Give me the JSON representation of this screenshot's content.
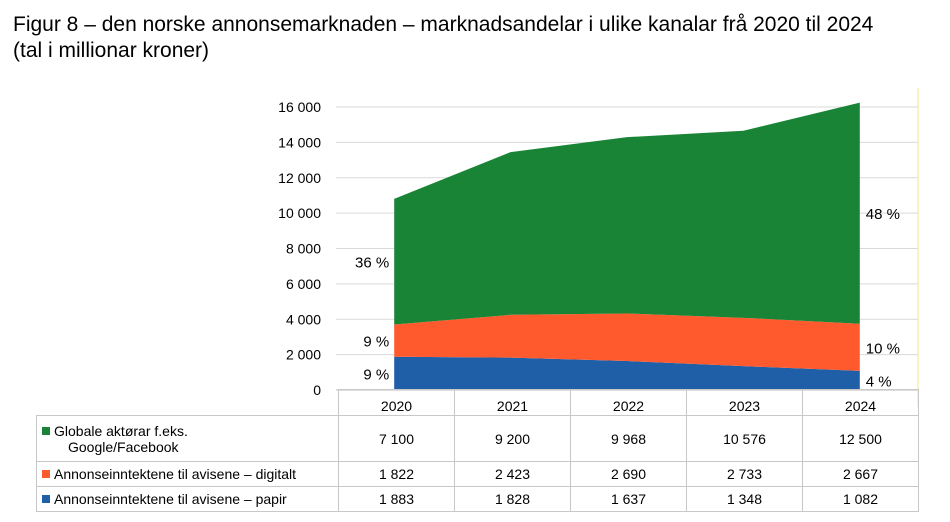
{
  "title_line1": "Figur 8 – den norske annonsemarknaden – marknadsandelar i ulike kanalar frå 2020 til 2024",
  "title_line2": "(tal i millionar kroner)",
  "chart_data": {
    "type": "area",
    "stacked": true,
    "categories": [
      "2020",
      "2021",
      "2022",
      "2023",
      "2024"
    ],
    "ylim": [
      0,
      16000
    ],
    "yticks": [
      "0",
      "2 000",
      "4 000",
      "6 000",
      "8 000",
      "10 000",
      "12 000",
      "14 000",
      "16 000"
    ],
    "series": [
      {
        "name": "Annonseinntektene til avisene – papir",
        "color": "#1f5fa8",
        "values": [
          1883,
          1828,
          1637,
          1348,
          1082
        ],
        "display": [
          "1 883",
          "1 828",
          "1 637",
          "1 348",
          "1 082"
        ]
      },
      {
        "name": "Annonseinntektene til avisene – digitalt",
        "color": "#ff5a2e",
        "values": [
          1822,
          2423,
          2690,
          2733,
          2667
        ],
        "display": [
          "1 822",
          "2 423",
          "2 690",
          "2 733",
          "2 667"
        ]
      },
      {
        "name": "Globale aktørar f.eks. Google/Facebook",
        "color": "#1a8436",
        "values": [
          7100,
          9200,
          9968,
          10576,
          12500
        ],
        "display": [
          "7 100",
          "9 200",
          "9 968",
          "10 576",
          "12 500"
        ]
      }
    ],
    "annotations": {
      "left": [
        "9 %",
        "9 %",
        "36 %"
      ],
      "right": [
        "4 %",
        "10 %",
        "48 %"
      ]
    },
    "table_rows": [
      {
        "label_line1": "Globale aktørar f.eks.",
        "label_line2": "Google/Facebook",
        "color": "#1a8436",
        "display": [
          "7 100",
          "9 200",
          "9 968",
          "10 576",
          "12 500"
        ]
      },
      {
        "label_line1": "Annonseinntektene til avisene – digitalt",
        "label_line2": "",
        "color": "#ff5a2e",
        "display": [
          "1 822",
          "2 423",
          "2 690",
          "2 733",
          "2 667"
        ]
      },
      {
        "label_line1": "Annonseinntektene til avisene – papir",
        "label_line2": "",
        "color": "#1f5fa8",
        "display": [
          "1 883",
          "1 828",
          "1 637",
          "1 348",
          "1 082"
        ]
      }
    ]
  }
}
